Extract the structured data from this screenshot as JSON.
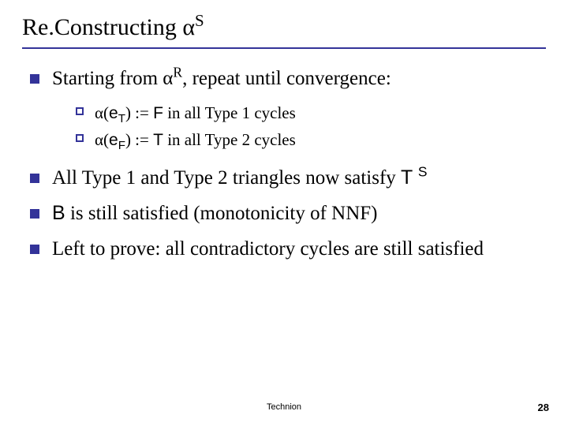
{
  "title": {
    "prefix": "Re.Constructing ",
    "alpha": "α",
    "sup": "S"
  },
  "bullets": [
    {
      "segments": [
        {
          "t": "Starting from "
        },
        {
          "t": "α",
          "cls": "alpha"
        },
        {
          "t": "R",
          "sup": true
        },
        {
          "t": ", repeat until convergence:"
        }
      ],
      "sub": [
        {
          "segments": [
            {
              "t": "α",
              "cls": "alpha"
            },
            {
              "t": "("
            },
            {
              "t": "e",
              "cls": "sans"
            },
            {
              "t": "T",
              "cls": "sans",
              "sub": true
            },
            {
              "t": ")  := "
            },
            {
              "t": "F",
              "cls": "sans"
            },
            {
              "t": " in all Type 1 cycles"
            }
          ]
        },
        {
          "segments": [
            {
              "t": "α",
              "cls": "alpha"
            },
            {
              "t": "("
            },
            {
              "t": "e",
              "cls": "sans"
            },
            {
              "t": "F",
              "cls": "sans",
              "sub": true
            },
            {
              "t": ")  := "
            },
            {
              "t": "T",
              "cls": "sans"
            },
            {
              "t": " in all Type 2 cycles"
            }
          ]
        }
      ]
    },
    {
      "segments": [
        {
          "t": "All Type 1 and Type 2 triangles now satisfy "
        },
        {
          "t": "T ",
          "cls": "sans"
        },
        {
          "t": "S",
          "cls": "sans",
          "sup": true
        }
      ]
    },
    {
      "segments": [
        {
          "t": "B",
          "cls": "sans"
        },
        {
          "t": " is still satisfied (monotonicity of NNF)"
        }
      ]
    },
    {
      "segments": [
        {
          "t": "Left to prove: all contradictory cycles are still satisfied"
        }
      ]
    }
  ],
  "footer": "Technion",
  "page": "28",
  "colors": {
    "accent": "#333399",
    "text": "#000000",
    "bg": "#ffffff"
  }
}
